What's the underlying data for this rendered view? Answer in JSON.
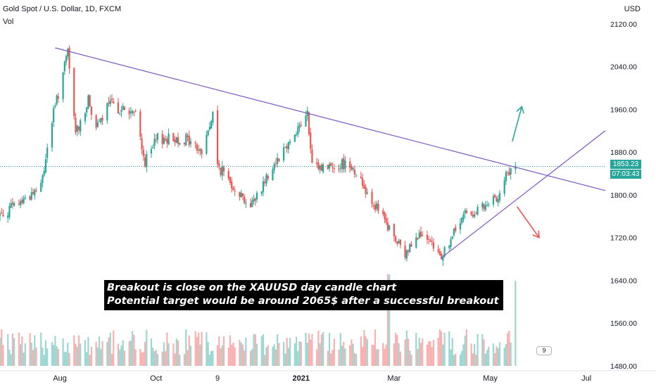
{
  "header": {
    "title": "Gold Spot / U.S. Dollar, 1D, FXCM",
    "subtitle": "Vol"
  },
  "axis_unit": "USD",
  "price_tag": "1853.23",
  "time_tag": "07:03:43",
  "vol_badge": "9",
  "annotation": {
    "line1": "Breakout is close on the XAUUSD day candle chart",
    "line2": "Potential target would be around 2065$ after a successful breakout"
  },
  "colors": {
    "up": "#26a69a",
    "down": "#ef5350",
    "trendline": "#7e57c2",
    "arrow_up": "#26a69a",
    "arrow_down": "#ef5350"
  },
  "chart_data": {
    "type": "candlestick",
    "title": "Gold Spot / U.S. Dollar, 1D, FXCM",
    "y_unit": "USD",
    "ylim": [
      1480,
      2125
    ],
    "y_ticks": [
      1480,
      1560,
      1640,
      1720,
      1800,
      1880,
      1960,
      2040,
      2120
    ],
    "y_tick_labels": [
      "1480.00",
      "1560.00",
      "1640.00",
      "1720.00",
      "1800.00",
      "1880.00",
      "1960.00",
      "2040.00",
      "2120.00"
    ],
    "x_range": [
      "2020-06-24",
      "2021-07-13"
    ],
    "x_ticks": [
      {
        "date": "2020-08-01",
        "label": "Aug"
      },
      {
        "date": "2020-10-01",
        "label": "Oct"
      },
      {
        "date": "2020-11-09",
        "label": "9"
      },
      {
        "date": "2021-01-01",
        "label": "2021"
      },
      {
        "date": "2021-03-01",
        "label": "Mar"
      },
      {
        "date": "2021-05-01",
        "label": "May"
      },
      {
        "date": "2021-07-01",
        "label": "Jul"
      }
    ],
    "last_price": 1853.23,
    "grid": false,
    "price_path": [
      [
        "2020-06-24",
        1762
      ],
      [
        "2020-07-06",
        1785
      ],
      [
        "2020-07-20",
        1815
      ],
      [
        "2020-07-27",
        1940
      ],
      [
        "2020-08-06",
        2065
      ],
      [
        "2020-08-11",
        1915
      ],
      [
        "2020-08-19",
        1975
      ],
      [
        "2020-08-25",
        1925
      ],
      [
        "2020-09-01",
        1970
      ],
      [
        "2020-09-18",
        1950
      ],
      [
        "2020-09-24",
        1860
      ],
      [
        "2020-10-02",
        1905
      ],
      [
        "2020-10-20",
        1905
      ],
      [
        "2020-10-30",
        1880
      ],
      [
        "2020-11-06",
        1950
      ],
      [
        "2020-11-09",
        1855
      ],
      [
        "2020-11-30",
        1778
      ],
      [
        "2020-12-15",
        1860
      ],
      [
        "2021-01-05",
        1950
      ],
      [
        "2021-01-08",
        1850
      ],
      [
        "2021-01-22",
        1855
      ],
      [
        "2021-02-01",
        1860
      ],
      [
        "2021-02-18",
        1775
      ],
      [
        "2021-03-08",
        1685
      ],
      [
        "2021-03-15",
        1730
      ],
      [
        "2021-03-31",
        1685
      ],
      [
        "2021-04-15",
        1765
      ],
      [
        "2021-04-28",
        1775
      ],
      [
        "2021-05-04",
        1790
      ],
      [
        "2021-05-11",
        1835
      ],
      [
        "2021-05-17",
        1853
      ]
    ],
    "volume_spikes": [
      {
        "date": "2021-02-26",
        "relative": 1.0
      },
      {
        "date": "2021-05-16",
        "relative": 0.93
      }
    ],
    "trendlines": [
      {
        "name": "resistance",
        "from": [
          "2020-07-29",
          2075
        ],
        "to": [
          "2021-07-13",
          1808
        ]
      },
      {
        "name": "support",
        "from": [
          "2021-03-31",
          1682
        ],
        "to": [
          "2021-07-13",
          1920
        ]
      }
    ],
    "arrows": [
      {
        "direction": "up",
        "from": [
          "2021-05-15",
          1900
        ],
        "to": [
          "2021-05-21",
          1965
        ]
      },
      {
        "direction": "down",
        "from": [
          "2021-05-18",
          1778
        ],
        "to": [
          "2021-06-01",
          1720
        ]
      }
    ]
  }
}
